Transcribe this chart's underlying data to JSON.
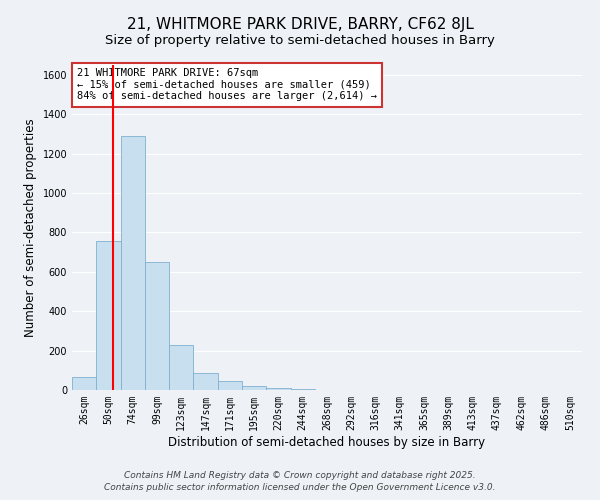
{
  "title": "21, WHITMORE PARK DRIVE, BARRY, CF62 8JL",
  "subtitle": "Size of property relative to semi-detached houses in Barry",
  "xlabel": "Distribution of semi-detached houses by size in Barry",
  "ylabel": "Number of semi-detached properties",
  "bar_labels": [
    "26sqm",
    "50sqm",
    "74sqm",
    "99sqm",
    "123sqm",
    "147sqm",
    "171sqm",
    "195sqm",
    "220sqm",
    "244sqm",
    "268sqm",
    "292sqm",
    "316sqm",
    "341sqm",
    "365sqm",
    "389sqm",
    "413sqm",
    "437sqm",
    "462sqm",
    "486sqm",
    "510sqm"
  ],
  "bar_heights": [
    65,
    755,
    1290,
    650,
    230,
    85,
    45,
    22,
    10,
    3,
    1,
    0,
    0,
    0,
    0,
    0,
    0,
    0,
    0,
    0,
    0
  ],
  "bar_color": "#c8dff0",
  "bar_edge_color": "#7fb0d0",
  "property_value": 67,
  "bin_edges": [
    26,
    50,
    74,
    99,
    123,
    147,
    171,
    195,
    220,
    244,
    268,
    292,
    316,
    341,
    365,
    389,
    413,
    437,
    462,
    486,
    510
  ],
  "ylim": [
    0,
    1650
  ],
  "yticks": [
    0,
    200,
    400,
    600,
    800,
    1000,
    1200,
    1400,
    1600
  ],
  "annotation_title": "21 WHITMORE PARK DRIVE: 67sqm",
  "annotation_line1": "← 15% of semi-detached houses are smaller (459)",
  "annotation_line2": "84% of semi-detached houses are larger (2,614) →",
  "footer_line1": "Contains HM Land Registry data © Crown copyright and database right 2025.",
  "footer_line2": "Contains public sector information licensed under the Open Government Licence v3.0.",
  "background_color": "#eef2f7",
  "grid_color": "#ffffff",
  "title_fontsize": 11,
  "subtitle_fontsize": 9.5,
  "axis_label_fontsize": 8.5,
  "tick_fontsize": 7,
  "annotation_fontsize": 7.5,
  "footer_fontsize": 6.5
}
